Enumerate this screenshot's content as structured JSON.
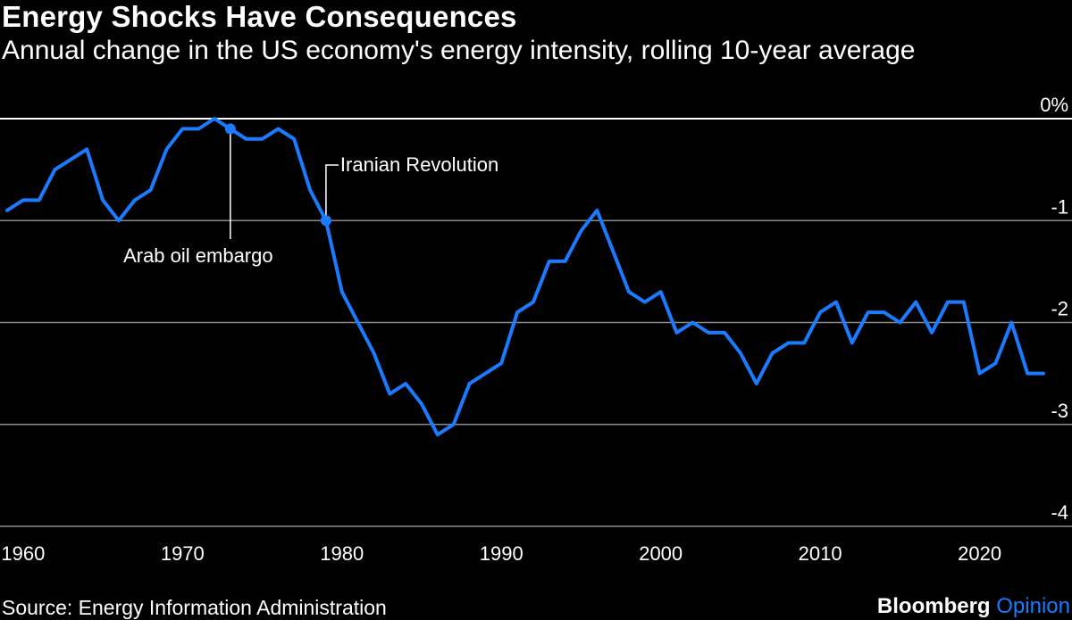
{
  "header": {
    "title": "Energy Shocks Have Consequences",
    "subtitle": "Annual change in the US economy's energy intensity, rolling 10-year average"
  },
  "footer": {
    "source": "Source: Energy Information Administration",
    "brand_main": "Bloomberg",
    "brand_accent": "Opinion"
  },
  "colors": {
    "background": "#000000",
    "line": "#1a7bff",
    "grid": "#8a8a8a",
    "zero_line": "#ffffff"
  },
  "chart_data": {
    "type": "line",
    "title": "Energy Shocks Have Consequences",
    "subtitle": "Annual change in the US economy's energy intensity, rolling 10-year average",
    "x_ticks": [
      1960,
      1970,
      1980,
      1990,
      2000,
      2010,
      2020
    ],
    "x_tick_labels": [
      "1960",
      "1970",
      "1980",
      "1990",
      "2000",
      "2010",
      "2020"
    ],
    "y_ticks": [
      0,
      -1,
      -2,
      -3,
      -4
    ],
    "y_tick_labels": [
      "0%",
      "-1",
      "-2",
      "-3",
      "-4"
    ],
    "xlim": [
      1959,
      2025
    ],
    "ylim": [
      -4,
      0
    ],
    "grid": true,
    "y_axis_side": "right",
    "series": [
      {
        "x": [
          1959,
          1960,
          1961,
          1962,
          1963,
          1964,
          1965,
          1966,
          1967,
          1968,
          1969,
          1970,
          1971,
          1972,
          1973,
          1974,
          1975,
          1976,
          1977,
          1978,
          1979,
          1980,
          1981,
          1982,
          1983,
          1984,
          1985,
          1986,
          1987,
          1988,
          1989,
          1990,
          1991,
          1992,
          1993,
          1994,
          1995,
          1996,
          1997,
          1998,
          1999,
          2000,
          2001,
          2002,
          2003,
          2004,
          2005,
          2006,
          2007,
          2008,
          2009,
          2010,
          2011,
          2012,
          2013,
          2014,
          2015,
          2016,
          2017,
          2018,
          2019,
          2020,
          2021,
          2022,
          2023,
          2024
        ],
        "values": [
          -0.9,
          -0.8,
          -0.8,
          -0.5,
          -0.4,
          -0.3,
          -0.8,
          -1.0,
          -0.8,
          -0.7,
          -0.3,
          -0.1,
          -0.1,
          0.0,
          -0.1,
          -0.2,
          -0.2,
          -0.1,
          -0.2,
          -0.7,
          -1.0,
          -1.7,
          -2.0,
          -2.3,
          -2.7,
          -2.6,
          -2.8,
          -3.1,
          -3.0,
          -2.6,
          -2.5,
          -2.4,
          -1.9,
          -1.8,
          -1.4,
          -1.4,
          -1.1,
          -0.9,
          -1.3,
          -1.7,
          -1.8,
          -1.7,
          -2.1,
          -2.0,
          -2.1,
          -2.1,
          -2.3,
          -2.6,
          -2.3,
          -2.2,
          -2.2,
          -1.9,
          -1.8,
          -2.2,
          -1.9,
          -1.9,
          -2.0,
          -1.8,
          -2.1,
          -1.8,
          -1.8,
          -2.5,
          -2.4,
          -2.0,
          -2.5,
          -2.5
        ]
      }
    ],
    "annotations": [
      {
        "text": "Arab oil embargo",
        "x": 1973,
        "y": -0.1
      },
      {
        "text": "Iranian Revolution",
        "x": 1979,
        "y": -1.0
      }
    ]
  }
}
